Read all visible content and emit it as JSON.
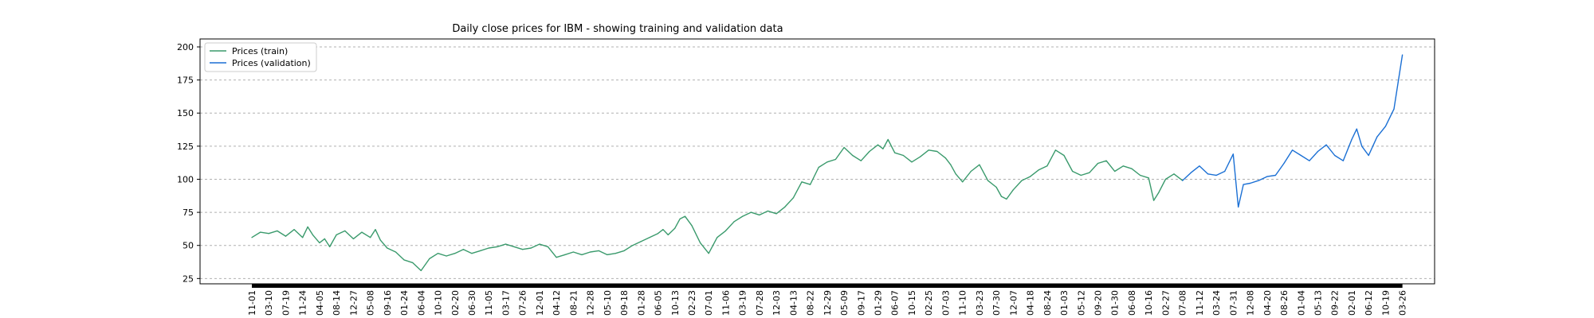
{
  "chart_data": {
    "type": "line",
    "title": "Daily close prices for IBM - showing training and validation data",
    "xlabel": "",
    "ylabel": "",
    "ylim": [
      21,
      206
    ],
    "yticks": [
      25,
      50,
      75,
      100,
      125,
      150,
      175,
      200
    ],
    "grid": "horizontal dashed",
    "legend_position": "top-left",
    "x_tick_labels": [
      "11-01",
      "03-10",
      "07-19",
      "11-24",
      "04-05",
      "08-14",
      "12-27",
      "05-08",
      "09-16",
      "01-24",
      "06-04",
      "10-10",
      "02-20",
      "06-30",
      "11-05",
      "03-17",
      "07-26",
      "12-01",
      "04-12",
      "08-21",
      "12-28",
      "05-10",
      "09-18",
      "01-28",
      "06-05",
      "10-13",
      "02-23",
      "07-01",
      "11-06",
      "03-19",
      "07-28",
      "12-03",
      "04-13",
      "08-22",
      "12-29",
      "05-09",
      "09-17",
      "01-29",
      "06-07",
      "10-15",
      "02-25",
      "07-03",
      "11-10",
      "03-23",
      "07-30",
      "12-07",
      "04-18",
      "08-24",
      "01-03",
      "05-12",
      "09-20",
      "01-30",
      "06-08",
      "10-16",
      "02-27",
      "07-08",
      "11-12",
      "03-24",
      "07-31",
      "12-08",
      "04-20",
      "08-26",
      "01-04",
      "05-13",
      "09-22",
      "02-01",
      "06-12",
      "10-19",
      "03-26"
    ],
    "series": [
      {
        "name": "Prices (train)",
        "color": "#3a9a6c",
        "x_index": [
          0,
          0.5,
          1,
          1.5,
          2,
          2.5,
          3,
          3.3,
          3.6,
          4,
          4.3,
          4.6,
          5,
          5.5,
          6,
          6.5,
          7,
          7.3,
          7.6,
          8,
          8.5,
          9,
          9.5,
          10,
          10.5,
          11,
          11.5,
          12,
          12.5,
          13,
          13.5,
          14,
          14.5,
          15,
          15.5,
          16,
          16.5,
          17,
          17.5,
          18,
          18.5,
          19,
          19.5,
          20,
          20.5,
          21,
          21.5,
          22,
          22.5,
          23,
          23.5,
          24,
          24.3,
          24.6,
          25,
          25.3,
          25.6,
          26,
          26.5,
          27,
          27.5,
          28,
          28.5,
          29,
          29.5,
          30,
          30.5,
          31,
          31.5,
          32,
          32.5,
          33,
          33.5,
          34,
          34.5,
          35,
          35.5,
          36,
          36.5,
          37,
          37.3,
          37.6,
          38,
          38.5,
          39,
          39.5,
          40,
          40.5,
          41,
          41.3,
          41.6,
          42,
          42.5,
          43,
          43.5,
          44,
          44.3,
          44.6,
          45,
          45.5,
          46,
          46.5,
          47,
          47.5,
          48,
          48.5,
          49,
          49.5,
          50,
          50.5,
          51,
          51.5,
          52,
          52.5,
          53,
          53.3,
          53.6,
          54,
          54.5,
          55
        ],
        "values": [
          56,
          60,
          59,
          61,
          57,
          62,
          56,
          64,
          58,
          52,
          55,
          49,
          58,
          61,
          55,
          60,
          56,
          62,
          54,
          48,
          45,
          39,
          37,
          31,
          40,
          44,
          42,
          44,
          47,
          44,
          46,
          48,
          49,
          51,
          49,
          47,
          48,
          51,
          49,
          41,
          43,
          45,
          43,
          45,
          46,
          43,
          44,
          46,
          50,
          53,
          56,
          59,
          62,
          58,
          63,
          70,
          72,
          65,
          52,
          44,
          56,
          61,
          68,
          72,
          75,
          73,
          76,
          74,
          79,
          86,
          98,
          96,
          109,
          113,
          115,
          124,
          118,
          114,
          121,
          126,
          123,
          130,
          120,
          118,
          113,
          117,
          122,
          121,
          116,
          111,
          104,
          98,
          106,
          111,
          99,
          94,
          87,
          85,
          92,
          99,
          102,
          107,
          110,
          122,
          118,
          106,
          103,
          105,
          112,
          114,
          106,
          110,
          108,
          103,
          101,
          84,
          90,
          100,
          104,
          99
        ]
      },
      {
        "name": "Prices (validation)",
        "color": "#1a6fd4",
        "x_index": [
          55,
          55.5,
          56,
          56.5,
          57,
          57.5,
          58,
          58.3,
          58.6,
          59,
          59.5,
          60,
          60.5,
          61,
          61.5,
          62,
          62.5,
          63,
          63.5,
          64,
          64.5,
          65,
          65.3,
          65.6,
          66,
          66.5,
          67,
          67.5,
          68
        ],
        "values": [
          99,
          105,
          110,
          104,
          103,
          106,
          119,
          79,
          96,
          97,
          99,
          102,
          103,
          112,
          122,
          118,
          114,
          121,
          126,
          118,
          114,
          130,
          138,
          125,
          118,
          132,
          140,
          153,
          194
        ]
      }
    ]
  }
}
